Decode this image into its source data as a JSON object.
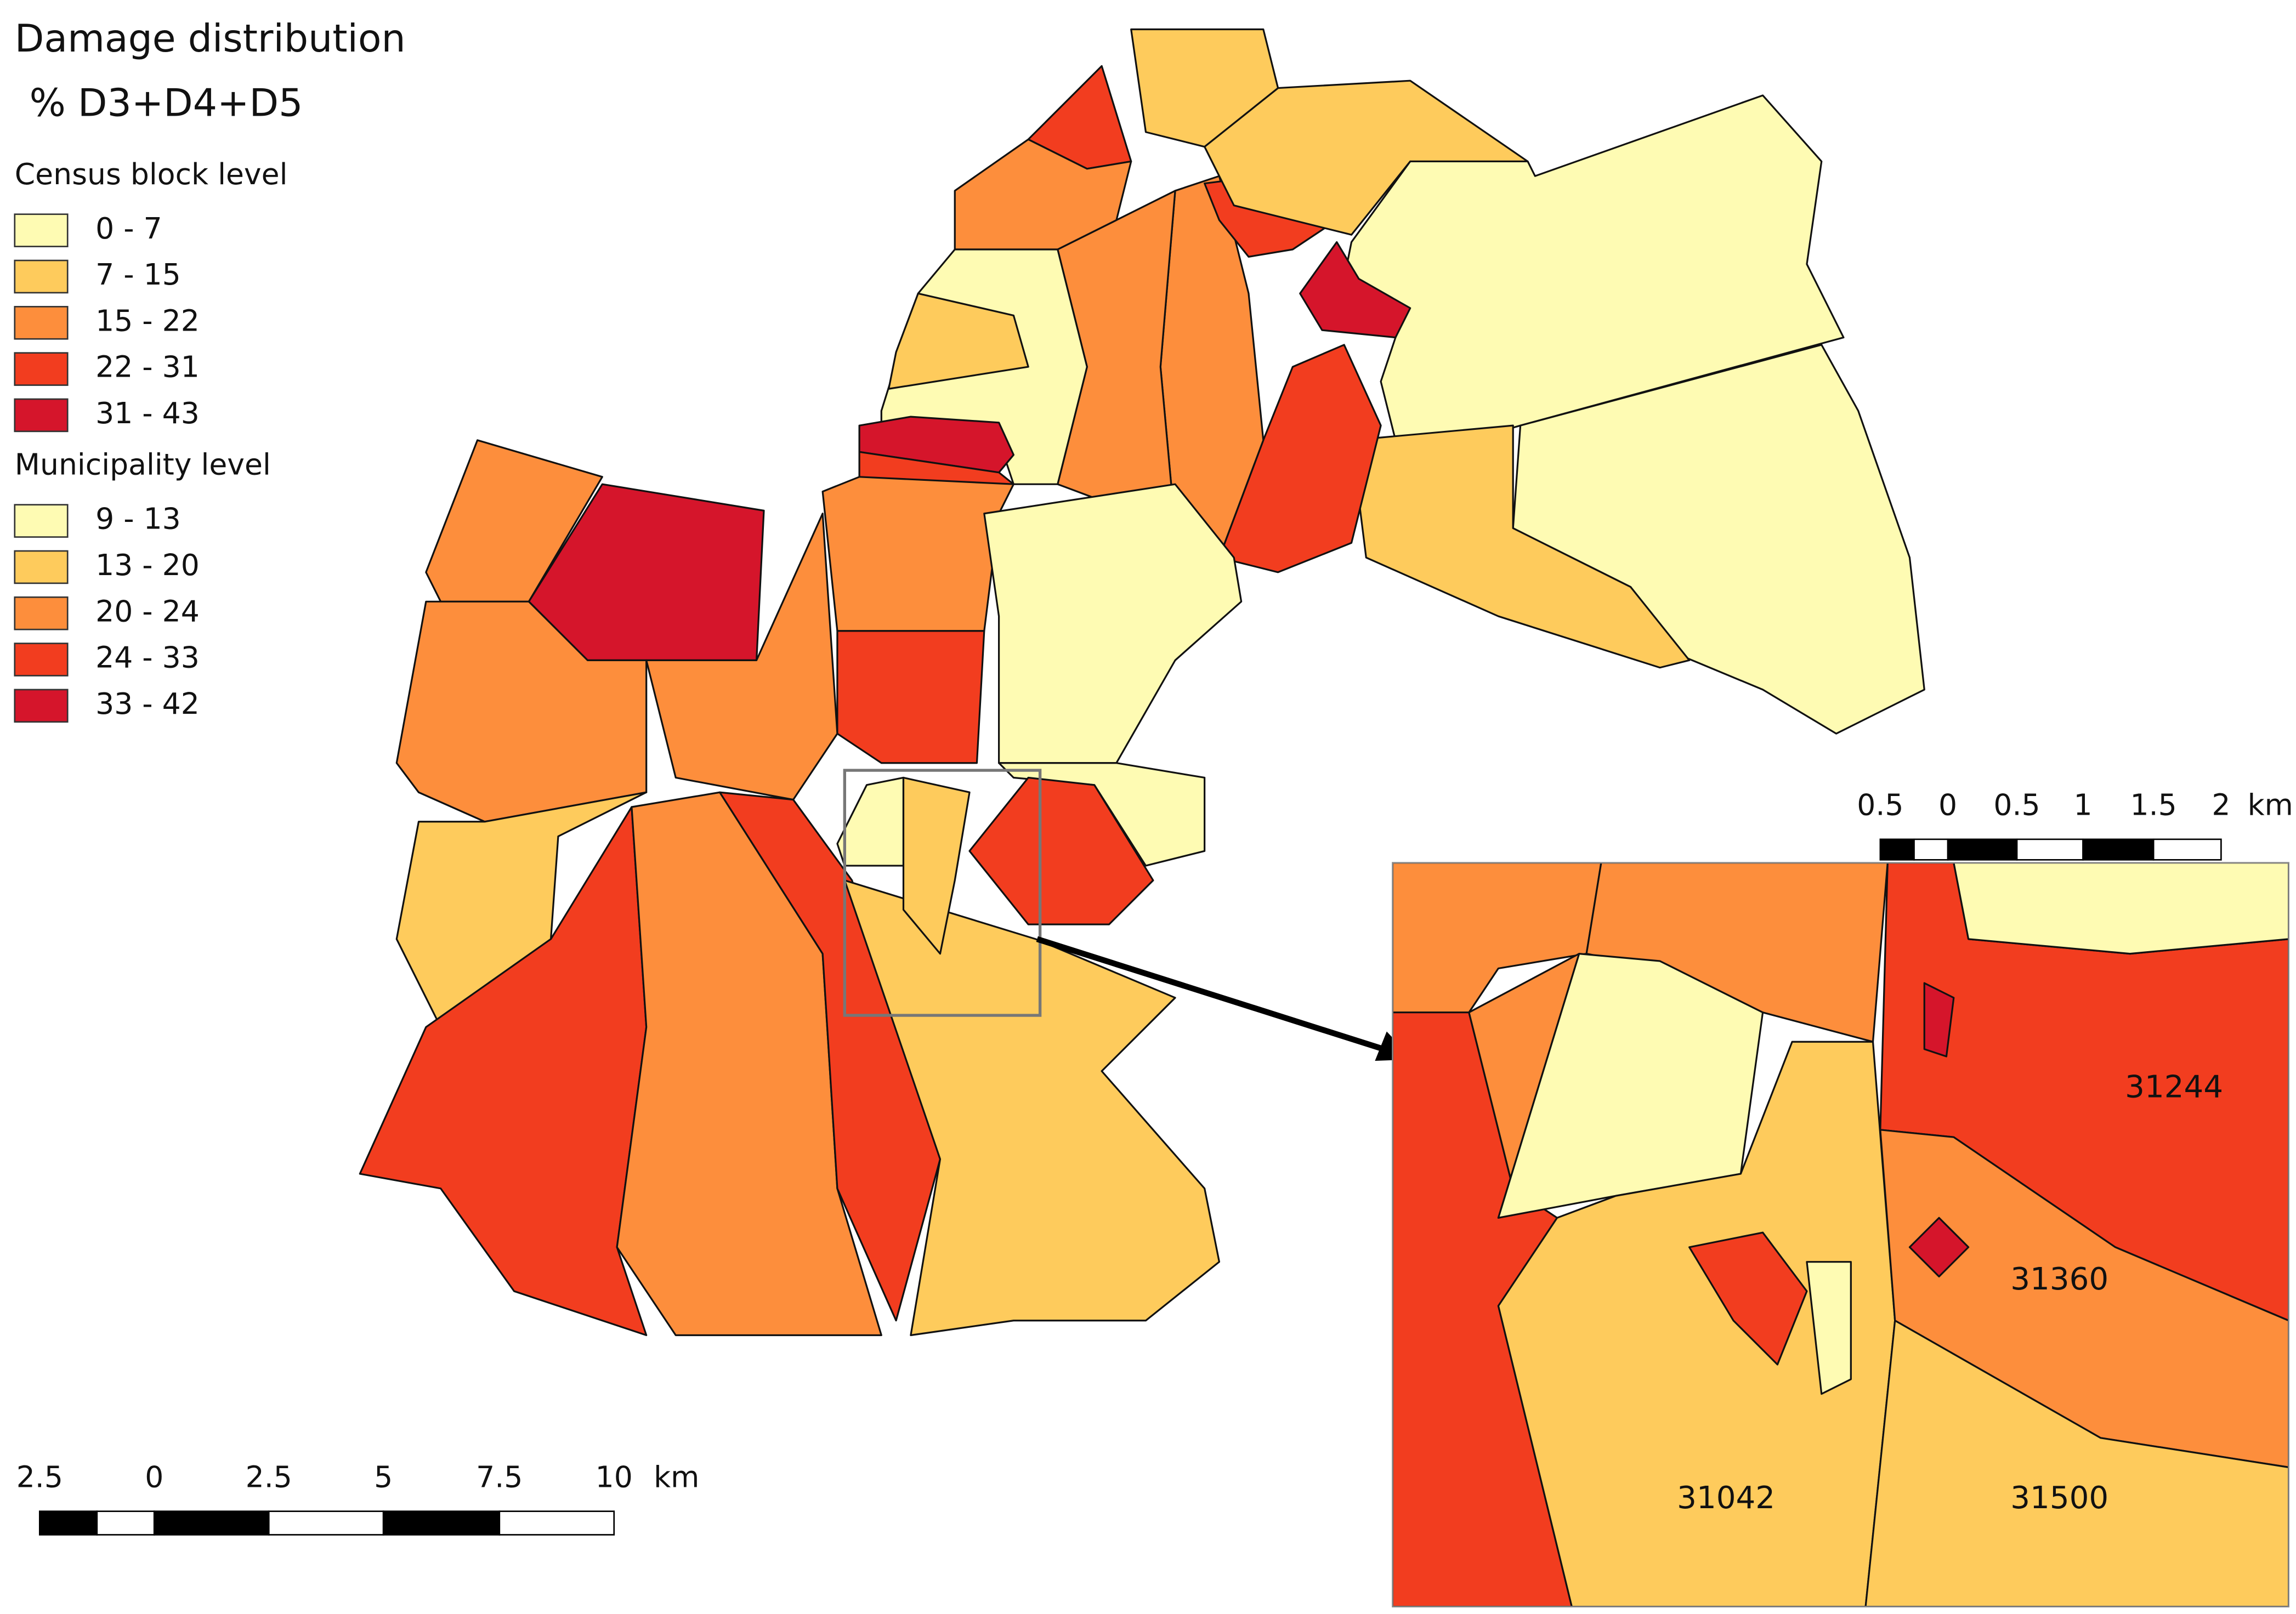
{
  "title": "Damage distribution",
  "subtitle": "% D3+D4+D5",
  "legend": {
    "sections": [
      {
        "heading": "Census block level",
        "items": [
          {
            "label": "0 - 7",
            "color": "#fefbb3"
          },
          {
            "label": "7 - 15",
            "color": "#fecb5c"
          },
          {
            "label": "15 - 22",
            "color": "#fd8e3c"
          },
          {
            "label": "22 - 31",
            "color": "#f23d1f"
          },
          {
            "label": "31 - 43",
            "color": "#d5152b"
          }
        ]
      },
      {
        "heading": "Municipality level",
        "items": [
          {
            "label": "9 - 13",
            "color": "#fefbb3"
          },
          {
            "label": "13 - 20",
            "color": "#fecb5c"
          },
          {
            "label": "20 - 24",
            "color": "#fd8e3c"
          },
          {
            "label": "24 - 33",
            "color": "#f23d1f"
          },
          {
            "label": "33 - 42",
            "color": "#d5152b"
          }
        ]
      }
    ]
  },
  "main_scale": {
    "ticks": [
      "2.5",
      "0",
      "2.5",
      "5",
      "7.5",
      "10"
    ],
    "unit": "km"
  },
  "inset_scale": {
    "ticks": [
      "0.5",
      "0",
      "0.5",
      "1",
      "1.5",
      "2"
    ],
    "unit": "km"
  },
  "inset": {
    "labels": [
      "31244",
      "31360",
      "31042",
      "31500"
    ]
  }
}
